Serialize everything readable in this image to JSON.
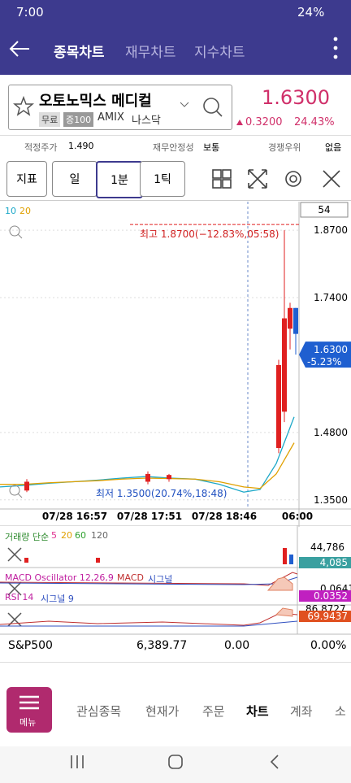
{
  "status_bar": {
    "time": "7:00",
    "battery": "24%"
  },
  "header": {
    "tabs": [
      "종목차트",
      "재무차트",
      "지수차트"
    ]
  },
  "stock": {
    "name": "오토노믹스 메디컬",
    "tags": [
      "무료",
      "증100"
    ],
    "ticker": "AMIX",
    "exchange": "나스닥",
    "price": "1.6300",
    "change": "0.3200",
    "change_pct": "24.43%"
  },
  "info": [
    {
      "label": "적정주가",
      "value": "1.490"
    },
    {
      "label": "재무안정성",
      "value": "보통"
    },
    {
      "label": "경쟁우위",
      "value": "없음"
    }
  ],
  "toolbar": [
    "지표",
    "일",
    "1분",
    "1틱"
  ],
  "chart_data": {
    "type": "candlestick",
    "period": "54",
    "up_color": "#e02020",
    "down_color": "#1f5fd0",
    "ylim": [
      1.334,
      1.914
    ],
    "yticks": [
      {
        "value": 1.87,
        "label": "1.8700"
      },
      {
        "value": 1.74,
        "label": "1.7400"
      },
      {
        "value": 1.48,
        "label": "1.4800"
      },
      {
        "value": 1.35,
        "label": "1.3500"
      }
    ],
    "current": {
      "value": 1.63,
      "label": "1.6300",
      "change": "-5.23%"
    },
    "high_note": "최고 1.8700(−12.83%,05:58)",
    "low_note": "최저 1.3500(20.74%,18:48)",
    "x_labels": [
      "07/28 16:57",
      "07/28 17:51",
      "07/28 18:46",
      "06:00"
    ],
    "candles": [
      {
        "open": 1.368,
        "high": 1.39,
        "low": 1.365,
        "close": 1.385
      },
      {
        "open": 1.385,
        "high": 1.405,
        "low": 1.38,
        "close": 1.4
      },
      {
        "open": 1.39,
        "high": 1.4,
        "low": 1.385,
        "close": 1.398
      },
      {
        "open": 1.45,
        "high": 1.62,
        "low": 1.44,
        "close": 1.61
      },
      {
        "open": 1.52,
        "high": 1.87,
        "low": 1.5,
        "close": 1.7
      },
      {
        "open": 1.68,
        "high": 1.73,
        "low": 1.64,
        "close": 1.72
      },
      {
        "open": 1.72,
        "high": 1.72,
        "low": 1.63,
        "close": 1.67
      }
    ],
    "series": [
      {
        "name": "10",
        "color": "#1ca8c8",
        "values": [
          1.375,
          1.378,
          1.382,
          1.385,
          1.388,
          1.392,
          1.395,
          1.392,
          1.39,
          1.38,
          1.365,
          1.37,
          1.42,
          1.51
        ]
      },
      {
        "name": "20",
        "color": "#e0a000",
        "values": [
          1.38,
          1.38,
          1.383,
          1.385,
          1.387,
          1.39,
          1.392,
          1.391,
          1.39,
          1.385,
          1.375,
          1.372,
          1.4,
          1.46
        ]
      }
    ]
  },
  "volume": {
    "title": "거래량 단순",
    "periods": [
      "5",
      "20",
      "60",
      "120"
    ],
    "max": "44,786",
    "last": "4,085"
  },
  "macd": {
    "title": "MACD Oscillator 12,26,9",
    "macd": "MACD",
    "signal": "시그널",
    "top": "0.0641",
    "last": "0.0352"
  },
  "rsi": {
    "title": "RSI 14",
    "signal": "시그널 9",
    "top": "86.8727",
    "last": "69.9437"
  },
  "index_row": {
    "name": "S&P500",
    "value": "6,389.77",
    "change": "0.00",
    "change_pct": "0.00%"
  },
  "bottom_nav": {
    "menu": "메뉴",
    "items": [
      "관심종목",
      "현재가",
      "주문",
      "차트",
      "계좌",
      "소"
    ]
  }
}
